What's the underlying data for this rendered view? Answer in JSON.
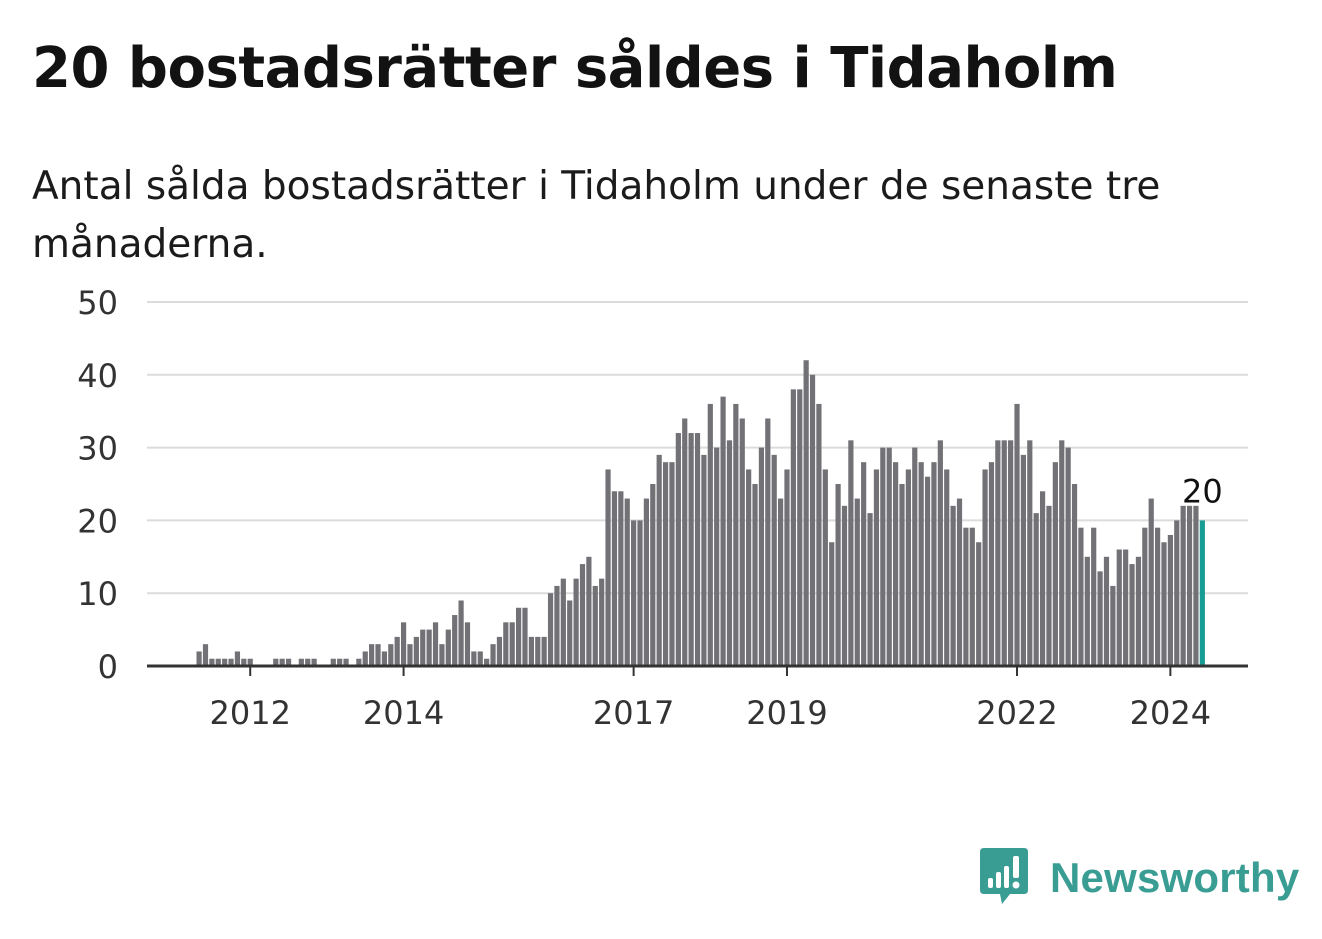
{
  "title": "20 bostadsrätter såldes i Tidaholm",
  "subtitle": "Antal sålda bostadsrätter i Tidaholm under de senaste tre månaderna.",
  "brand": {
    "name": "Newsworthy",
    "icon": "newsworthy-logo-icon",
    "color": "#3a9d93"
  },
  "chart_data": {
    "type": "bar",
    "ylim": [
      0,
      50
    ],
    "y_ticks": [
      0,
      10,
      20,
      30,
      40,
      50
    ],
    "x_ticks": [
      "2012",
      "2014",
      "2017",
      "2019",
      "2022",
      "2024"
    ],
    "x_tick_positions": [
      8,
      32,
      68,
      92,
      128,
      152
    ],
    "grid": true,
    "bar_color": "#727276",
    "highlight_color": "#179d94",
    "highlight_label": "20",
    "values": [
      2,
      3,
      1,
      1,
      1,
      1,
      2,
      1,
      1,
      0,
      0,
      0,
      1,
      1,
      1,
      0,
      1,
      1,
      1,
      0,
      0,
      1,
      1,
      1,
      0,
      1,
      2,
      3,
      3,
      2,
      3,
      4,
      6,
      3,
      4,
      5,
      5,
      6,
      3,
      5,
      7,
      9,
      6,
      2,
      2,
      1,
      3,
      4,
      6,
      6,
      8,
      8,
      4,
      4,
      4,
      10,
      11,
      12,
      9,
      12,
      14,
      15,
      11,
      12,
      27,
      24,
      24,
      23,
      20,
      20,
      23,
      25,
      29,
      28,
      28,
      32,
      34,
      32,
      32,
      29,
      36,
      30,
      37,
      31,
      36,
      34,
      27,
      25,
      30,
      34,
      29,
      23,
      27,
      38,
      38,
      42,
      40,
      36,
      27,
      17,
      25,
      22,
      31,
      23,
      28,
      21,
      27,
      30,
      30,
      28,
      25,
      27,
      30,
      28,
      26,
      28,
      31,
      27,
      22,
      23,
      19,
      19,
      17,
      27,
      28,
      31,
      31,
      31,
      36,
      29,
      31,
      21,
      24,
      22,
      28,
      31,
      30,
      25,
      19,
      15,
      19,
      13,
      15,
      11,
      16,
      16,
      14,
      15,
      19,
      23,
      19,
      17,
      18,
      20,
      22,
      22,
      22,
      20
    ]
  }
}
